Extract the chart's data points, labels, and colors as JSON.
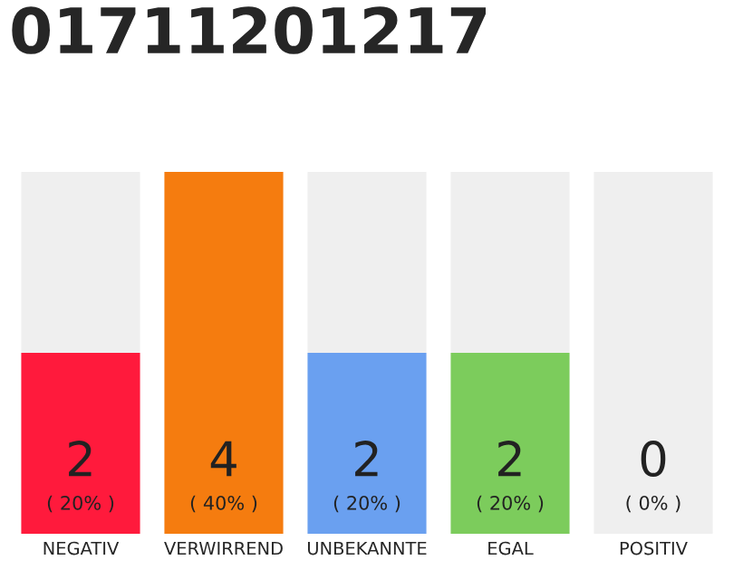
{
  "chart_data": {
    "type": "bar",
    "title": "01711201217",
    "categories": [
      "NEGATIV",
      "VERWIRREND",
      "UNBEKANNTE",
      "EGAL",
      "POSITIV"
    ],
    "stacked": true,
    "series": [
      {
        "colors": [
          "#ff1a3c",
          "#f57c0f",
          "#6aa0f0",
          "#7ccc5c",
          null
        ],
        "values": [
          2,
          4,
          2,
          2,
          0
        ],
        "value_labels": [
          "2",
          "4",
          "2",
          "2",
          null
        ]
      },
      {
        "color": "#efefef",
        "values": [
          2,
          0,
          2,
          2,
          4
        ]
      }
    ],
    "ylim": [
      0,
      4
    ],
    "tick_labels": "x",
    "legend": false,
    "annotations": [
      "( 20% )",
      "( 40% )",
      "( 20% )",
      "( 20% )",
      "( 0% )",
      {
        "text": "0",
        "x": "POSITIV",
        "y": 0
      }
    ]
  }
}
